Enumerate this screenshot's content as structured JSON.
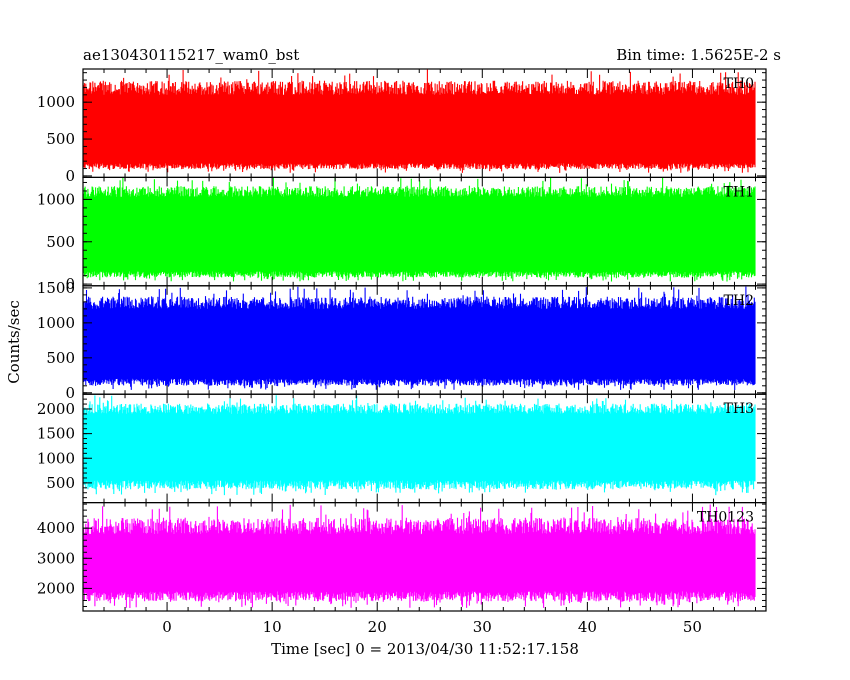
{
  "chart_data": {
    "type": "line",
    "title": "ae130430115217_wam0_bst",
    "subtitle": "Bin time: 1.5625E-2 s",
    "xlabel": "Time [sec] 0 = 2013/04/30 11:52:17.158",
    "ylabel": "Counts/sec",
    "xlim": [
      -8,
      57
    ],
    "x_data_range": [
      -8,
      56
    ],
    "x_ticks": [
      0,
      10,
      20,
      30,
      40,
      50
    ],
    "grid": false,
    "legend": "none",
    "panels": [
      {
        "name": "TH0",
        "color": "#ff0000",
        "ylim": [
          -20,
          1450
        ],
        "y_ticks": [
          0,
          500,
          1000
        ],
        "band_low": 170,
        "band_high": 1100,
        "min_value": 40,
        "max_value": 1450
      },
      {
        "name": "TH1",
        "color": "#00ff00",
        "ylim": [
          -20,
          1260
        ],
        "y_ticks": [
          0,
          500,
          1000
        ],
        "band_low": 150,
        "band_high": 1030,
        "min_value": 30,
        "max_value": 1260
      },
      {
        "name": "TH2",
        "color": "#0000ff",
        "ylim": [
          -20,
          1530
        ],
        "y_ticks": [
          0,
          500,
          1000,
          1500
        ],
        "band_low": 200,
        "band_high": 1200,
        "min_value": 40,
        "max_value": 1520
      },
      {
        "name": "TH3",
        "color": "#00ffff",
        "ylim": [
          100,
          2300
        ],
        "y_ticks": [
          500,
          1000,
          1500,
          2000
        ],
        "band_low": 550,
        "band_high": 1900,
        "min_value": 250,
        "max_value": 2280
      },
      {
        "name": "TH0123",
        "color": "#ff00ff",
        "ylim": [
          1250,
          4850
        ],
        "y_ticks": [
          2000,
          3000,
          4000
        ],
        "band_low": 1900,
        "band_high": 3800,
        "min_value": 1350,
        "max_value": 4800
      }
    ]
  }
}
